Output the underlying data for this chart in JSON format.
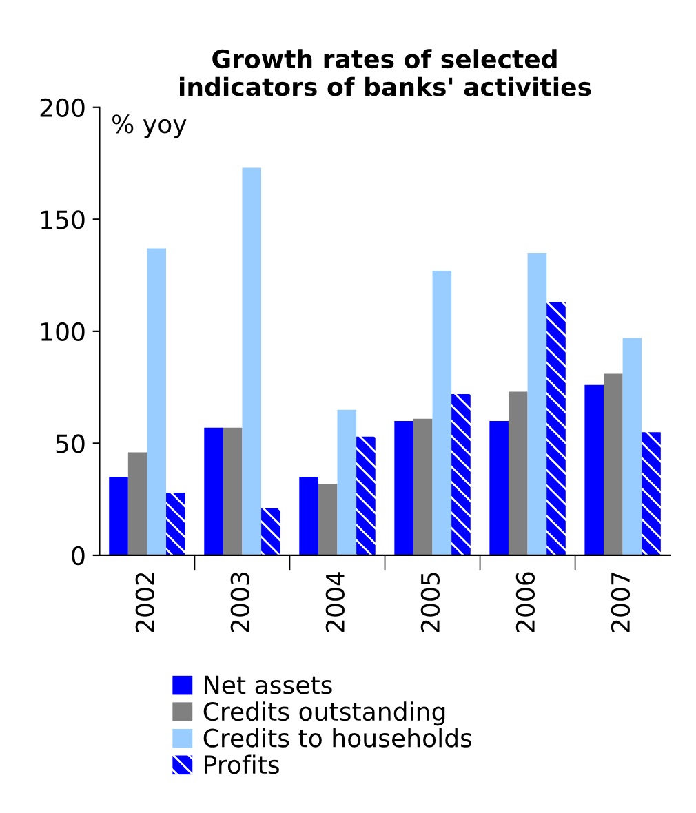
{
  "chart_data": {
    "type": "bar",
    "title": "Growth rates of selected\nindicators of banks' activities",
    "ylabel": "% yoy",
    "categories": [
      "2002",
      "2003",
      "2004",
      "2005",
      "2006",
      "2007"
    ],
    "series": [
      {
        "name": "Net assets",
        "color": "#0000ff",
        "values": [
          35,
          57,
          35,
          60,
          60,
          76
        ]
      },
      {
        "name": "Credits outstanding",
        "color": "#808080",
        "values": [
          46,
          57,
          32,
          61,
          73,
          81
        ]
      },
      {
        "name": "Credits to households",
        "color": "#99ccff",
        "values": [
          137,
          173,
          65,
          127,
          135,
          97
        ]
      },
      {
        "name": "Profits",
        "color": "#0000ff",
        "values": [
          28,
          21,
          53,
          72,
          113,
          55
        ]
      }
    ],
    "ylim": [
      0,
      200
    ],
    "yticks": [
      0,
      50,
      100,
      150,
      200
    ],
    "grid": false,
    "legend": "bottom"
  }
}
